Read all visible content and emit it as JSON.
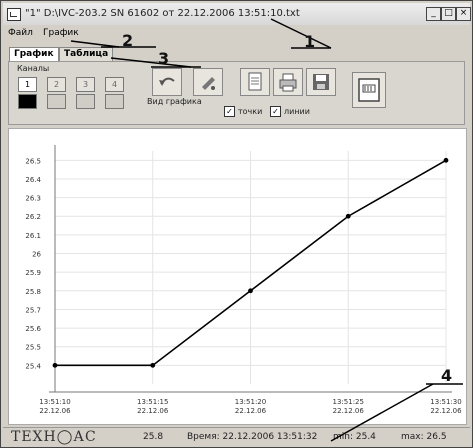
{
  "window": {
    "title": "\"1\" D:\\IVC-203.2 SN 61602 от 22.12.2006 13:51:10.txt",
    "buttons": {
      "minimize": "_",
      "maximize": "□",
      "close": "×"
    }
  },
  "menu": {
    "file": "Файл",
    "chart": "График"
  },
  "tabs": [
    {
      "label": "График"
    },
    {
      "label": "Таблица"
    }
  ],
  "toolbar": {
    "channels_label": "Каналы",
    "channels": [
      "1",
      "2",
      "3",
      "4"
    ],
    "chart_view_label": "Вид графика",
    "points_label": "точки",
    "lines_label": "линии",
    "points_checked": "✓",
    "lines_checked": "✓"
  },
  "chart_data": {
    "type": "line",
    "x": [
      "13:51:10\n22.12.06",
      "13:51:15\n22.12.06",
      "13:51:20\n22.12.06",
      "13:51:25\n22.12.06",
      "13:51:30\n22.12.06"
    ],
    "x_ticks": [
      {
        "time": "13:51:10",
        "date": "22.12.06"
      },
      {
        "time": "13:51:15",
        "date": "22.12.06"
      },
      {
        "time": "13:51:20",
        "date": "22.12.06"
      },
      {
        "time": "13:51:25",
        "date": "22.12.06"
      },
      {
        "time": "13:51:30",
        "date": "22.12.06"
      }
    ],
    "values": [
      25.4,
      25.4,
      25.8,
      26.2,
      26.5
    ],
    "y_ticks": [
      "26.5",
      "26.4",
      "26.3",
      "26.2",
      "26.1",
      "26",
      "25.9",
      "25.8",
      "25.7",
      "25.6",
      "25.5",
      "25.4"
    ],
    "ylim": [
      25.3,
      26.55
    ],
    "grid": true,
    "line_color": "#000000"
  },
  "status": {
    "brand": "ТЕХН◯АС",
    "value": "25.8",
    "time": "Время: 22.12.2006 13:51:32",
    "min": "min: 25.4",
    "max": "max: 26.5"
  },
  "callouts": [
    "1",
    "2",
    "3",
    "4"
  ]
}
